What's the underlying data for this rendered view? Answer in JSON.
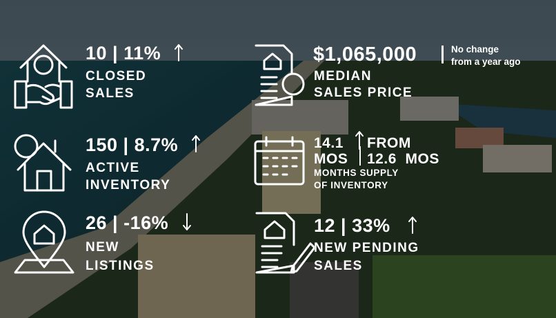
{
  "items": [
    {
      "value": "10 | 11%",
      "label": [
        "CLOSED",
        "SALES"
      ]
    },
    {
      "value": "$1,065,000",
      "note": [
        "No change",
        "from a year ago"
      ],
      "label": [
        "MEDIAN",
        "SALES PRICE"
      ]
    },
    {
      "value": "150 | 8.7%",
      "label": [
        "ACTIVE",
        "INVENTORY"
      ]
    },
    {
      "value": [
        "14.1",
        "MOS"
      ],
      "compare": [
        "FROM",
        "12.6  MOS"
      ],
      "label": [
        "MONTHS SUPPLY",
        "OF INVENTORY"
      ]
    },
    {
      "value": "26 | -16%",
      "label": [
        "NEW",
        "LISTINGS"
      ]
    },
    {
      "value": "12 | 33%",
      "label": [
        "NEW PENDING",
        "SALES"
      ]
    }
  ]
}
